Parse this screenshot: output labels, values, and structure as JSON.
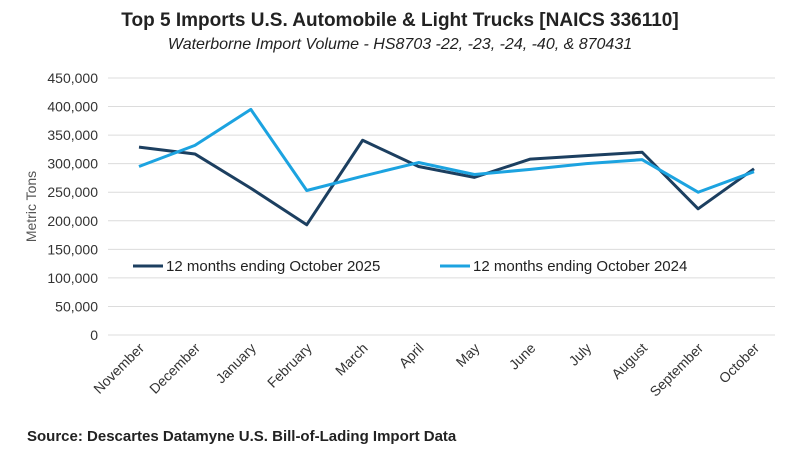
{
  "chart_data": {
    "type": "line",
    "title": "Top 5 Imports U.S. Automobile & Light Trucks [NAICS 336110]",
    "subtitle": "Waterborne Import Volume - HS8703 -22, -23, -24, -40, & 870431",
    "ylabel": "Metric Tons",
    "xlabel": "",
    "ylim": [
      0,
      450000
    ],
    "yticks": [
      0,
      50000,
      100000,
      150000,
      200000,
      250000,
      300000,
      350000,
      400000,
      450000
    ],
    "ytick_labels": [
      "0",
      "50,000",
      "100,000",
      "150,000",
      "200,000",
      "250,000",
      "300,000",
      "350,000",
      "400,000",
      "450,000"
    ],
    "grid": true,
    "legend_placement": "inside-lower-center",
    "categories": [
      "November",
      "December",
      "January",
      "February",
      "March",
      "April",
      "May",
      "June",
      "July",
      "August",
      "September",
      "October"
    ],
    "series": [
      {
        "name": "12 months ending October 2025",
        "color": "#1c3f60",
        "values": [
          329000,
          317000,
          257000,
          193000,
          341000,
          295000,
          276000,
          308000,
          314000,
          320000,
          221000,
          291000
        ]
      },
      {
        "name": "12 months ending October 2024",
        "color": "#1ca3e0",
        "values": [
          295000,
          332000,
          395000,
          253000,
          278000,
          302000,
          281000,
          290000,
          300000,
          307000,
          250000,
          286000
        ]
      }
    ],
    "source": "Source: Descartes Datamyne U.S. Bill-of-Lading Import Data"
  }
}
